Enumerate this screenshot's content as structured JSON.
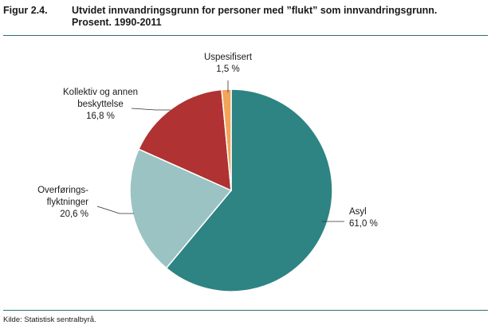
{
  "figure": {
    "number": "Figur 2.4.",
    "title_line1": "Utvidet innvandringsgrunn for personer med ”flukt” som innvandringsgrunn.",
    "title_line2": "Prosent. 1990-2011"
  },
  "source": "Kilde: Statistisk sentralbyrå.",
  "chart_data": {
    "type": "pie",
    "title": "Utvidet innvandringsgrunn for personer med ”flukt” som innvandringsgrunn. Prosent. 1990-2011",
    "unit": "%",
    "slices": [
      {
        "label": "Asyl",
        "label_lines": [
          "Asyl"
        ],
        "value": 61.0,
        "value_text": "61,0 %",
        "color": "#2e8482"
      },
      {
        "label": "Overføringsflyktninger",
        "label_lines": [
          "Overførings-",
          "flyktninger"
        ],
        "value": 20.6,
        "value_text": "20,6 %",
        "color": "#9bc3c3"
      },
      {
        "label": "Kollektiv og annen beskyttelse",
        "label_lines": [
          "Kollektiv og annen",
          "beskyttelse"
        ],
        "value": 16.8,
        "value_text": "16,8 %",
        "color": "#b03232"
      },
      {
        "label": "Uspesifisert",
        "label_lines": [
          "Uspesifisert"
        ],
        "value": 1.5,
        "value_text": "1,5 %",
        "color": "#f2a45a"
      }
    ]
  }
}
